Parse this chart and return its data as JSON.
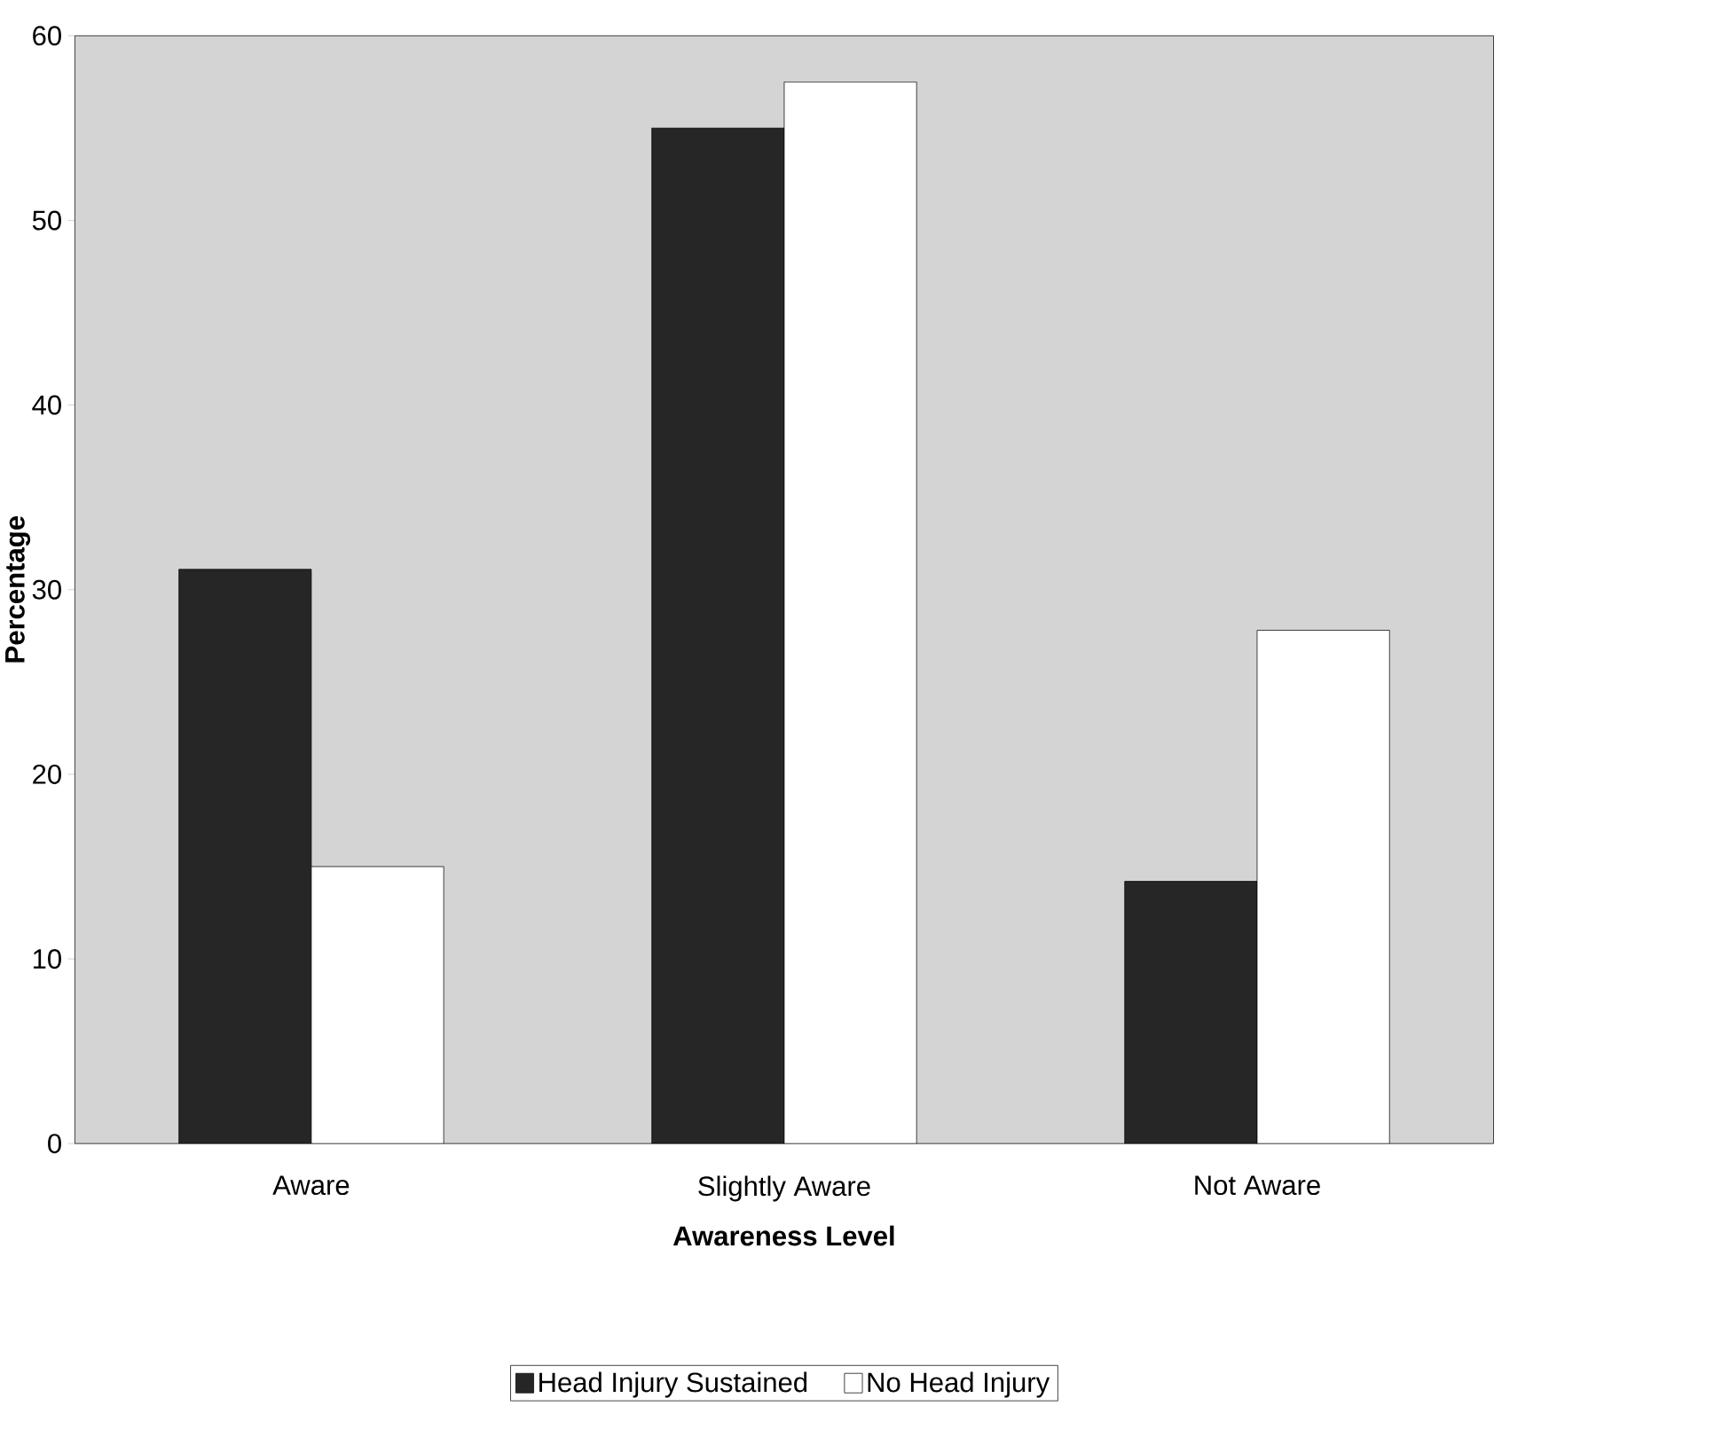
{
  "chart_data": {
    "type": "bar",
    "xlabel": "Awareness Level",
    "ylabel": "Percentage",
    "categories": [
      "Aware",
      "Slightly Aware",
      "Not Aware"
    ],
    "series": [
      {
        "name": "Head Injury Sustained",
        "color": "#262626",
        "values": [
          31.1,
          55,
          14.2
        ]
      },
      {
        "name": "No Head Injury",
        "color": "#ffffff",
        "values": [
          15,
          57.5,
          27.8
        ]
      }
    ],
    "ylim": [
      0,
      60
    ],
    "yticks": [
      0,
      10,
      20,
      30,
      40,
      50,
      60
    ],
    "legend": "bottom"
  }
}
